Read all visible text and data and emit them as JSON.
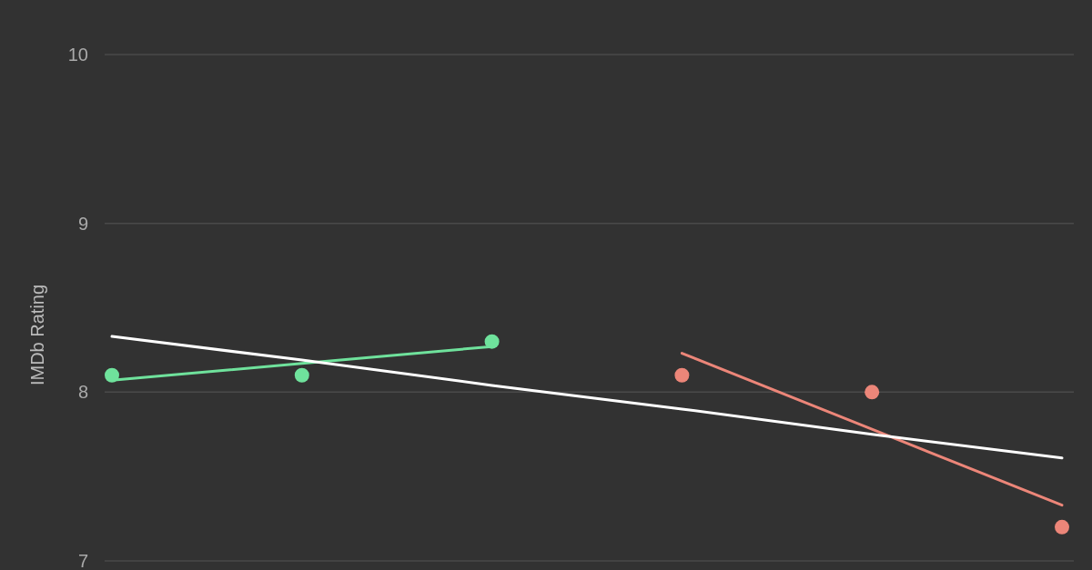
{
  "chart_data": {
    "type": "scatter",
    "ylabel": "IMDb Rating",
    "categories": [
      null,
      null,
      null,
      null,
      null,
      null
    ],
    "series": [
      {
        "type": "line",
        "marker": "none",
        "color": "#6fe29c",
        "values": [
          8.07,
          8.17,
          8.27,
          null,
          null,
          null
        ]
      },
      {
        "type": "line",
        "marker": "none",
        "color": "#ec8679",
        "values": [
          null,
          null,
          null,
          8.23,
          7.78,
          7.33
        ]
      },
      {
        "type": "line",
        "marker": "none",
        "color": "#ffffff",
        "values": [
          8.33,
          8.19,
          8.04,
          7.9,
          7.75,
          7.61
        ]
      },
      {
        "marker": "circle",
        "color": "#6fe29c",
        "values": [
          8.1,
          8.1,
          8.3,
          null,
          null,
          null
        ]
      },
      {
        "marker": "circle",
        "color": "#ec8679",
        "values": [
          null,
          null,
          null,
          8.1,
          8.0,
          7.2
        ]
      }
    ],
    "ylim": [
      7,
      10
    ],
    "yticks": [
      7,
      8,
      9,
      10
    ],
    "grid": "y"
  }
}
